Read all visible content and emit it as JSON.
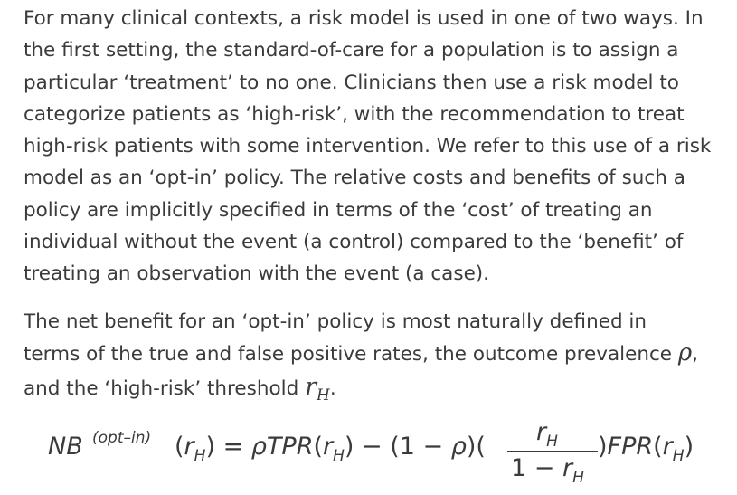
{
  "paragraph1": {
    "lines": [
      "For many clinical contexts, a risk model is used in one of two ways. In",
      "the first setting, the standard-of-care for a population is to assign a",
      "particular ‘treatment’ to no one. Clinicians then use a risk model to",
      "categorize patients as ‘high-risk’, with the recommendation to treat",
      "high-risk patients with some intervention. We refer to this use of a risk",
      "model as an ‘opt-in’ policy. The relative costs and benefits of such a",
      "policy are implicitly specified in terms of the ‘cost’ of treating an",
      "individual without the event (a control) compared to the ‘benefit’ of",
      "treating an observation with the event (a case)."
    ]
  },
  "paragraph2": {
    "line1": "The net benefit for an ‘opt-in’ policy is most naturally defined in",
    "line2_text": "terms of the true and false positive rates, the outcome prevalence",
    "line2_symbol": "ρ",
    "line2_end": ",",
    "line3_text": "and the ‘high-risk’ threshold",
    "line3_symbol": "r",
    "line3_sub": "H",
    "line3_end": "."
  },
  "equation": {
    "lhs_main": "NB",
    "lhs_sup": "(opt–in)",
    "lhs_arg_open": "(",
    "lhs_arg_var": "r",
    "lhs_arg_sub": "H",
    "lhs_arg_close": ") = ",
    "rho": "ρ",
    "tpr": "TPR",
    "tpr_open": "(",
    "tpr_var": "r",
    "tpr_sub": "H",
    "tpr_close": ") − (1 − ",
    "rho2": "ρ",
    "mid_close": ")(",
    "frac_num_var": "r",
    "frac_num_sub": "H",
    "frac_den_text": "1 − ",
    "frac_den_var": "r",
    "frac_den_sub": "H",
    "after_frac": ")",
    "fpr": "FPR",
    "fpr_open": "(",
    "fpr_var": "r",
    "fpr_sub": "H",
    "fpr_close": ")"
  }
}
